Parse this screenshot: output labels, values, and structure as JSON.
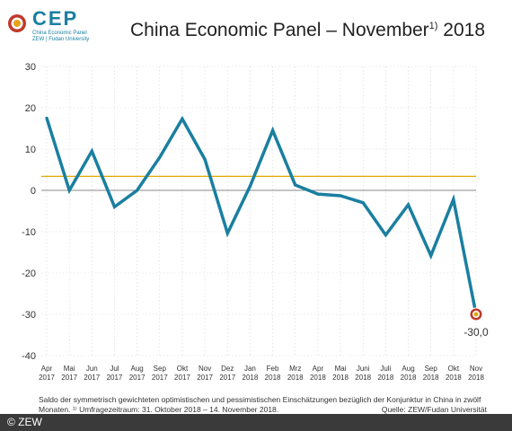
{
  "logo": {
    "name": "CEP",
    "line1": "China Economic Panel",
    "line2": "ZEW | Fudan University"
  },
  "title": {
    "text": "China Economic Panel – November",
    "sup": "1)",
    "year": " 2018"
  },
  "footnote": {
    "line1": "Saldo der symmetrisch gewichteten optimistischen und pessimistischen Einschätzungen bezüglich der Konjunktur in China in zwölf",
    "line2": "Monaten. ¹⁾ Umfragezeitraum: 31. Oktober 2018 – 14. November 2018."
  },
  "source": "Quelle: ZEW/Fudan Universität",
  "copyright": "© ZEW",
  "colors": {
    "line": "#1a7fa0",
    "mean": "#e0a800",
    "zero": "#888888",
    "grid": "#d6d6d6",
    "marker": "#c0392b"
  },
  "chart_data": {
    "type": "line",
    "ylim": [
      -40,
      30
    ],
    "yticks": [
      30,
      20,
      10,
      0,
      -10,
      -20,
      -30,
      -40
    ],
    "categories": [
      [
        "Apr",
        "2017"
      ],
      [
        "Mai",
        "2017"
      ],
      [
        "Jun",
        "2017"
      ],
      [
        "Jul",
        "2017"
      ],
      [
        "Aug",
        "2017"
      ],
      [
        "Sep",
        "2017"
      ],
      [
        "Okt",
        "2017"
      ],
      [
        "Nov",
        "2017"
      ],
      [
        "Dez",
        "2017"
      ],
      [
        "Jan",
        "2018"
      ],
      [
        "Feb",
        "2018"
      ],
      [
        "Mrz",
        "2018"
      ],
      [
        "Apr",
        "2018"
      ],
      [
        "Mai",
        "2018"
      ],
      [
        "Juni",
        "2018"
      ],
      [
        "Juli",
        "2018"
      ],
      [
        "Aug",
        "2018"
      ],
      [
        "Sep",
        "2018"
      ],
      [
        "Okt",
        "2018"
      ],
      [
        "Nov",
        "2018"
      ]
    ],
    "series": [
      {
        "values": [
          17.5,
          0.0,
          9.5,
          -4.0,
          0.0,
          8.0,
          17.3,
          7.5,
          -10.4,
          1.0,
          14.5,
          1.3,
          -0.9,
          -1.3,
          -3.0,
          -10.8,
          -3.5,
          -15.8,
          -2.2,
          -30.0
        ]
      }
    ],
    "mean_line": 3.4,
    "annotation": {
      "text": "-30,0",
      "index": 19
    }
  }
}
